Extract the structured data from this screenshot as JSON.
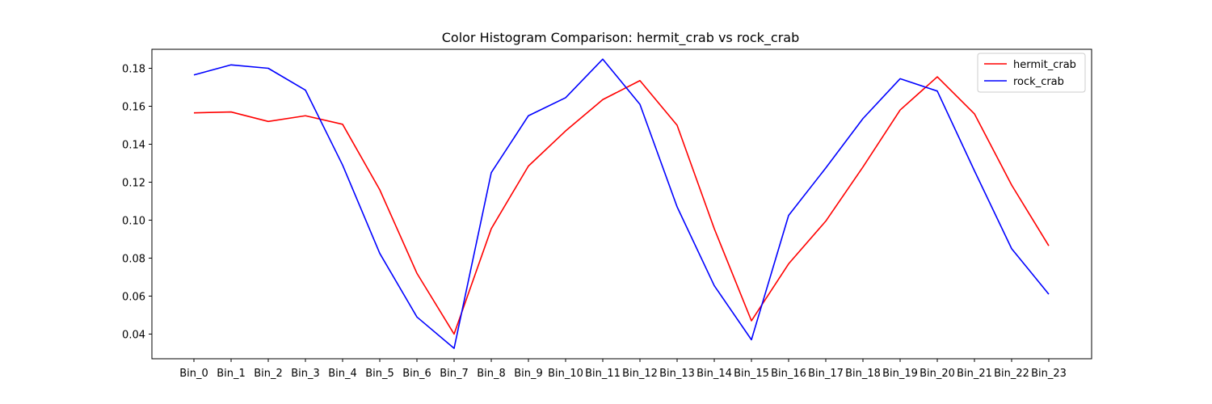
{
  "chart_data": {
    "type": "line",
    "title": "Color Histogram Comparison: hermit_crab vs rock_crab",
    "xlabel": "",
    "ylabel": "",
    "categories": [
      "Bin_0",
      "Bin_1",
      "Bin_2",
      "Bin_3",
      "Bin_4",
      "Bin_5",
      "Bin_6",
      "Bin_7",
      "Bin_8",
      "Bin_9",
      "Bin_10",
      "Bin_11",
      "Bin_12",
      "Bin_13",
      "Bin_14",
      "Bin_15",
      "Bin_16",
      "Bin_17",
      "Bin_18",
      "Bin_19",
      "Bin_20",
      "Bin_21",
      "Bin_22",
      "Bin_23"
    ],
    "ylim": [
      0.027,
      0.19
    ],
    "yticks": [
      "0.04",
      "0.06",
      "0.08",
      "0.10",
      "0.12",
      "0.14",
      "0.16",
      "0.18"
    ],
    "grid": false,
    "legend_position": "top-right",
    "series": [
      {
        "name": "hermit_crab",
        "color": "#ff0000",
        "values": [
          0.1565,
          0.157,
          0.152,
          0.155,
          0.1505,
          0.116,
          0.072,
          0.04,
          0.0955,
          0.1285,
          0.147,
          0.1635,
          0.1735,
          0.15,
          0.0955,
          0.047,
          0.077,
          0.0995,
          0.128,
          0.158,
          0.1755,
          0.156,
          0.1185,
          0.0865
        ]
      },
      {
        "name": "rock_crab",
        "color": "#0000ff",
        "values": [
          0.1765,
          0.1818,
          0.18,
          0.1685,
          0.129,
          0.0825,
          0.049,
          0.0325,
          0.125,
          0.155,
          0.1645,
          0.1848,
          0.161,
          0.107,
          0.0655,
          0.037,
          0.1025,
          0.1275,
          0.1535,
          0.1745,
          0.168,
          0.126,
          0.085,
          0.061
        ]
      }
    ]
  }
}
